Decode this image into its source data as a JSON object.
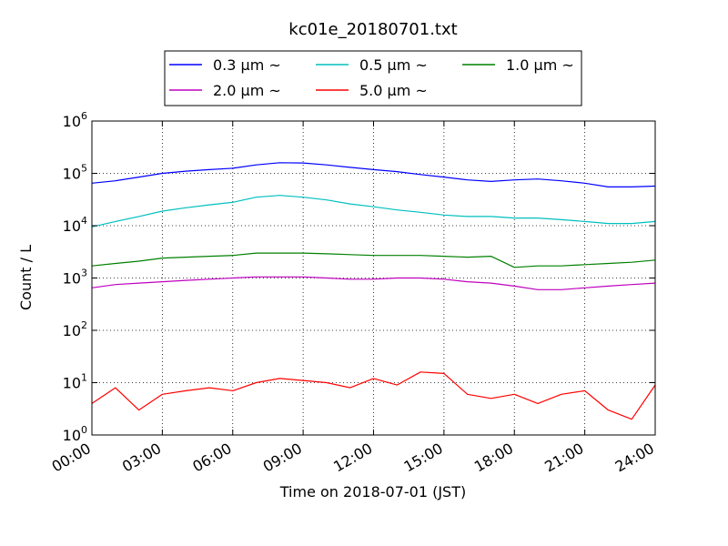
{
  "chart_data": {
    "type": "line",
    "title": "kc01e_20180701.txt",
    "xlabel": "Time on 2018-07-01 (JST)",
    "ylabel": "Count / L",
    "yscale": "log",
    "xlim": [
      "00:00",
      "24:00"
    ],
    "ylim": [
      1,
      1000000
    ],
    "x_ticks": [
      "00:00",
      "03:00",
      "06:00",
      "09:00",
      "12:00",
      "15:00",
      "18:00",
      "21:00",
      "24:00"
    ],
    "y_ticks": [
      {
        "base": "10",
        "exp": "0",
        "value": 1
      },
      {
        "base": "10",
        "exp": "1",
        "value": 10
      },
      {
        "base": "10",
        "exp": "2",
        "value": 100
      },
      {
        "base": "10",
        "exp": "3",
        "value": 1000
      },
      {
        "base": "10",
        "exp": "4",
        "value": 10000
      },
      {
        "base": "10",
        "exp": "5",
        "value": 100000
      },
      {
        "base": "10",
        "exp": "6",
        "value": 1000000
      }
    ],
    "grid": true,
    "legend_position": "top-center",
    "x": [
      "00:00",
      "01:00",
      "02:00",
      "03:00",
      "04:00",
      "05:00",
      "06:00",
      "07:00",
      "08:00",
      "09:00",
      "10:00",
      "11:00",
      "12:00",
      "13:00",
      "14:00",
      "15:00",
      "16:00",
      "17:00",
      "18:00",
      "19:00",
      "20:00",
      "21:00",
      "22:00",
      "23:00",
      "24:00"
    ],
    "series": [
      {
        "name": "0.3 μm ~",
        "color": "#0000ff",
        "values": [
          65000,
          72000,
          85000,
          100000,
          110000,
          118000,
          125000,
          145000,
          160000,
          158000,
          145000,
          130000,
          118000,
          108000,
          95000,
          85000,
          75000,
          70000,
          75000,
          78000,
          72000,
          65000,
          55000,
          55000,
          57000
        ]
      },
      {
        "name": "0.5 μm ~",
        "color": "#00bfbf",
        "values": [
          9500,
          12000,
          15000,
          19000,
          22000,
          25000,
          28000,
          35000,
          38000,
          35000,
          31000,
          26000,
          23000,
          20000,
          18000,
          16000,
          15000,
          15000,
          14000,
          14000,
          13000,
          12000,
          11000,
          11000,
          12000
        ]
      },
      {
        "name": "1.0 μm ~",
        "color": "#008000",
        "values": [
          1700,
          1900,
          2100,
          2400,
          2500,
          2600,
          2700,
          3000,
          3000,
          3000,
          2900,
          2800,
          2700,
          2700,
          2700,
          2600,
          2500,
          2600,
          1600,
          1700,
          1700,
          1800,
          1900,
          2000,
          2200
        ]
      },
      {
        "name": "2.0 μm ~",
        "color": "#bf00bf",
        "values": [
          650,
          750,
          800,
          850,
          900,
          950,
          1000,
          1050,
          1050,
          1050,
          1000,
          950,
          950,
          1000,
          1000,
          950,
          850,
          800,
          700,
          600,
          600,
          650,
          700,
          750,
          800
        ]
      },
      {
        "name": "5.0 μm ~",
        "color": "#ff0000",
        "values": [
          4,
          8,
          3,
          6,
          7,
          8,
          7,
          10,
          12,
          11,
          10,
          8,
          12,
          9,
          16,
          15,
          6,
          5,
          6,
          4,
          6,
          7,
          3,
          2,
          9
        ]
      }
    ]
  }
}
